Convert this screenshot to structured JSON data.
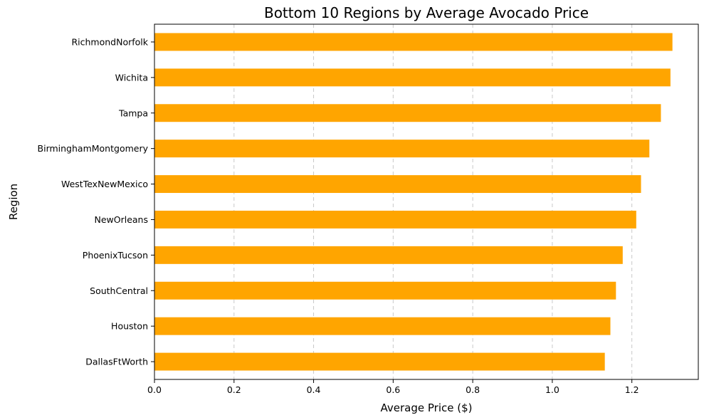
{
  "chart_data": {
    "type": "bar",
    "orientation": "horizontal",
    "title": "Bottom 10 Regions by Average Avocado Price",
    "xlabel": "Average Price ($)",
    "ylabel": "Region",
    "categories": [
      "RichmondNorfolk",
      "Wichita",
      "Tampa",
      "BirminghamMontgomery",
      "WestTexNewMexico",
      "NewOrleans",
      "PhoenixTucson",
      "SouthCentral",
      "Houston",
      "DallasFtWorth"
    ],
    "values": [
      1.302,
      1.297,
      1.273,
      1.244,
      1.223,
      1.211,
      1.177,
      1.16,
      1.146,
      1.132
    ],
    "xlim": [
      0,
      1.367
    ],
    "xticks": [
      0.0,
      0.2,
      0.4,
      0.6,
      0.8,
      1.0,
      1.2
    ],
    "xtick_labels": [
      "0.0",
      "0.2",
      "0.4",
      "0.6",
      "0.8",
      "1.0",
      "1.2"
    ],
    "grid": "vertical-dashed",
    "bar_color": "#ffa500",
    "grid_color": "#c8c8c8",
    "legend": "none"
  }
}
